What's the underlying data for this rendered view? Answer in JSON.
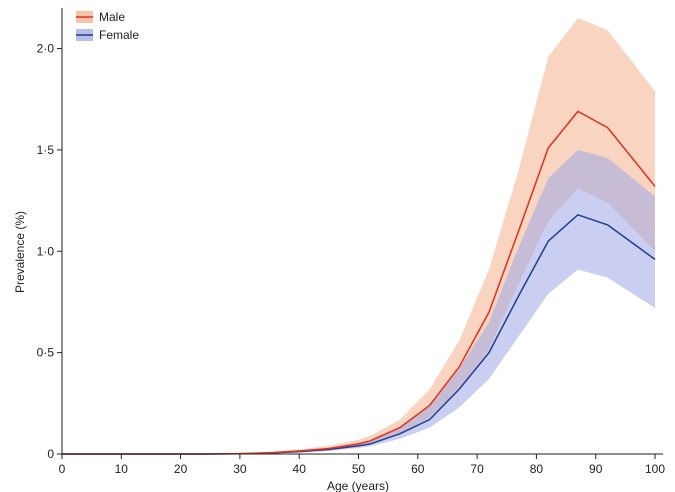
{
  "chart_data": {
    "type": "line",
    "xlabel": "Age (years)",
    "ylabel": "Prevalence (%)",
    "xlim": [
      0,
      100
    ],
    "ylim": [
      0,
      2.2
    ],
    "x_ticks": [
      0,
      10,
      20,
      30,
      40,
      50,
      60,
      70,
      80,
      90,
      100
    ],
    "x_tick_labels": [
      "0",
      "10",
      "20",
      "30",
      "40",
      "50",
      "60",
      "70",
      "80",
      "90",
      "100"
    ],
    "y_ticks": [
      0,
      0.5,
      1.0,
      1.5,
      2.0
    ],
    "y_tick_labels": [
      "0",
      "0·5",
      "1·0",
      "1·5",
      "2·0"
    ],
    "grid": false,
    "legend_position": "top-left",
    "series": [
      {
        "name": "Male",
        "color": "#e0301e",
        "band_color": "#f2b08e",
        "x": [
          0,
          5,
          10,
          15,
          20,
          25,
          30,
          35,
          40,
          45,
          50,
          52,
          57,
          62,
          67,
          72,
          77,
          82,
          87,
          92,
          100
        ],
        "y": [
          0,
          0,
          0,
          0,
          0,
          0,
          0.002,
          0.006,
          0.015,
          0.027,
          0.05,
          0.065,
          0.13,
          0.24,
          0.43,
          0.7,
          1.1,
          1.51,
          1.69,
          1.61,
          1.32
        ],
        "lower": [
          0,
          0,
          0,
          0,
          0,
          0,
          0.001,
          0.004,
          0.01,
          0.02,
          0.038,
          0.048,
          0.1,
          0.18,
          0.32,
          0.52,
          0.84,
          1.15,
          1.31,
          1.24,
          1.0
        ],
        "upper": [
          0,
          0,
          0,
          0,
          0,
          0,
          0.004,
          0.01,
          0.022,
          0.04,
          0.07,
          0.09,
          0.17,
          0.32,
          0.56,
          0.91,
          1.4,
          1.96,
          2.15,
          2.09,
          1.79
        ]
      },
      {
        "name": "Female",
        "color": "#1f3f8f",
        "band_color": "#9fa8e6",
        "x": [
          0,
          5,
          10,
          15,
          20,
          25,
          30,
          35,
          40,
          45,
          50,
          52,
          57,
          62,
          67,
          72,
          77,
          82,
          87,
          92,
          100
        ],
        "y": [
          0,
          0,
          0,
          0,
          0,
          0,
          0.001,
          0.005,
          0.012,
          0.022,
          0.04,
          0.05,
          0.1,
          0.17,
          0.32,
          0.5,
          0.78,
          1.05,
          1.18,
          1.13,
          0.96
        ],
        "lower": [
          0,
          0,
          0,
          0,
          0,
          0,
          0.001,
          0.003,
          0.008,
          0.015,
          0.03,
          0.038,
          0.075,
          0.13,
          0.23,
          0.37,
          0.58,
          0.79,
          0.91,
          0.87,
          0.72
        ],
        "upper": [
          0,
          0,
          0,
          0,
          0,
          0,
          0.003,
          0.008,
          0.017,
          0.03,
          0.052,
          0.065,
          0.135,
          0.24,
          0.42,
          0.65,
          1.02,
          1.36,
          1.5,
          1.46,
          1.27
        ]
      }
    ]
  }
}
